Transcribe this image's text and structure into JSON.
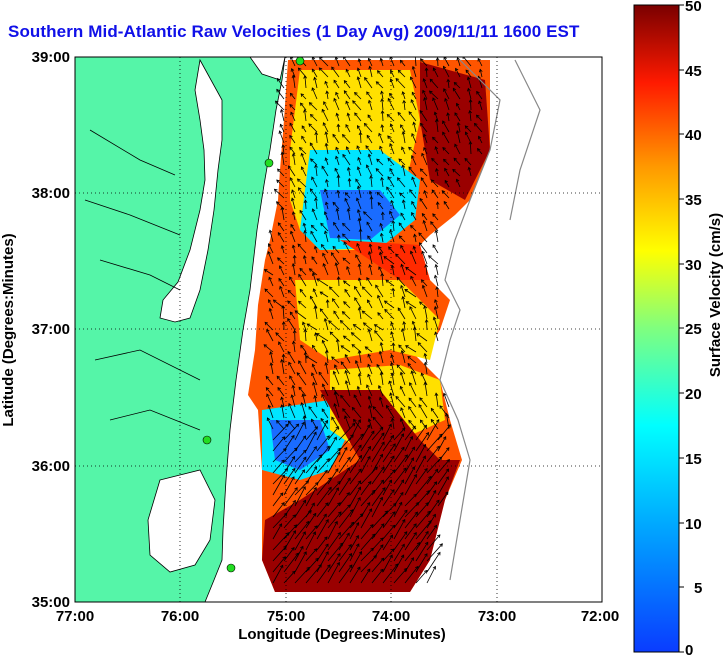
{
  "title": "Southern Mid-Atlantic Raw Velocities (1 Day Avg) 2009/11/11 1600 EST",
  "xaxis": {
    "label": "Longitude (Degrees:Minutes)",
    "ticks": [
      "77:00",
      "76:00",
      "75:00",
      "74:00",
      "73:00",
      "72:00"
    ],
    "range": [
      -77,
      -72
    ]
  },
  "yaxis": {
    "label": "Latitude (Degrees:Minutes)",
    "ticks": [
      "39:00",
      "38:00",
      "37:00",
      "36:00",
      "35:00"
    ],
    "range": [
      35,
      39
    ]
  },
  "colorbar": {
    "label": "Surface Velocity (cm/s)",
    "ticks": [
      "50",
      "45",
      "40",
      "35",
      "30",
      "25",
      "20",
      "15",
      "10",
      "5",
      "0"
    ],
    "range": [
      0,
      50
    ],
    "colormap": "jet"
  },
  "colors": {
    "land": "#55f5a8",
    "title": "#1010e8",
    "station_marker": "#22dd22",
    "vector": "#000000"
  }
}
